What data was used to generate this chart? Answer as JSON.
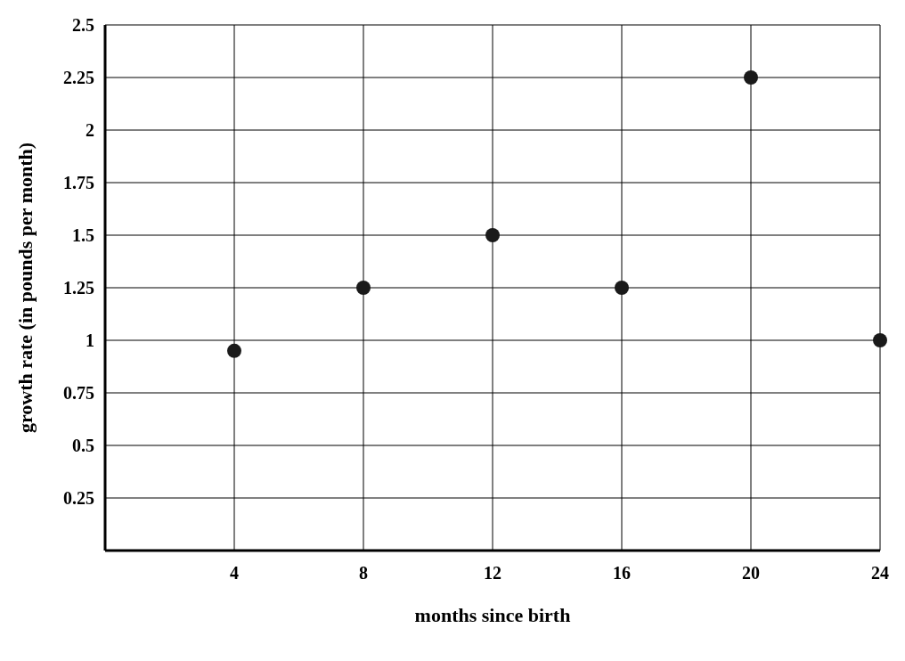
{
  "chart_data": {
    "type": "scatter",
    "xlabel": "months since birth",
    "ylabel": "growth rate (in pounds per month)",
    "x": [
      4,
      8,
      12,
      16,
      20,
      24
    ],
    "values": [
      0.95,
      1.25,
      1.5,
      1.25,
      2.25,
      1.0
    ],
    "color": "#1a1a1a",
    "marker": "circle",
    "xlim": [
      0,
      24
    ],
    "xticks": [
      4,
      8,
      12,
      16,
      20,
      24
    ],
    "ylim": [
      0,
      2.5
    ],
    "yticks": [
      0.25,
      0.5,
      0.75,
      1,
      1.25,
      1.5,
      1.75,
      2,
      2.25,
      2.5
    ],
    "grid": true
  }
}
